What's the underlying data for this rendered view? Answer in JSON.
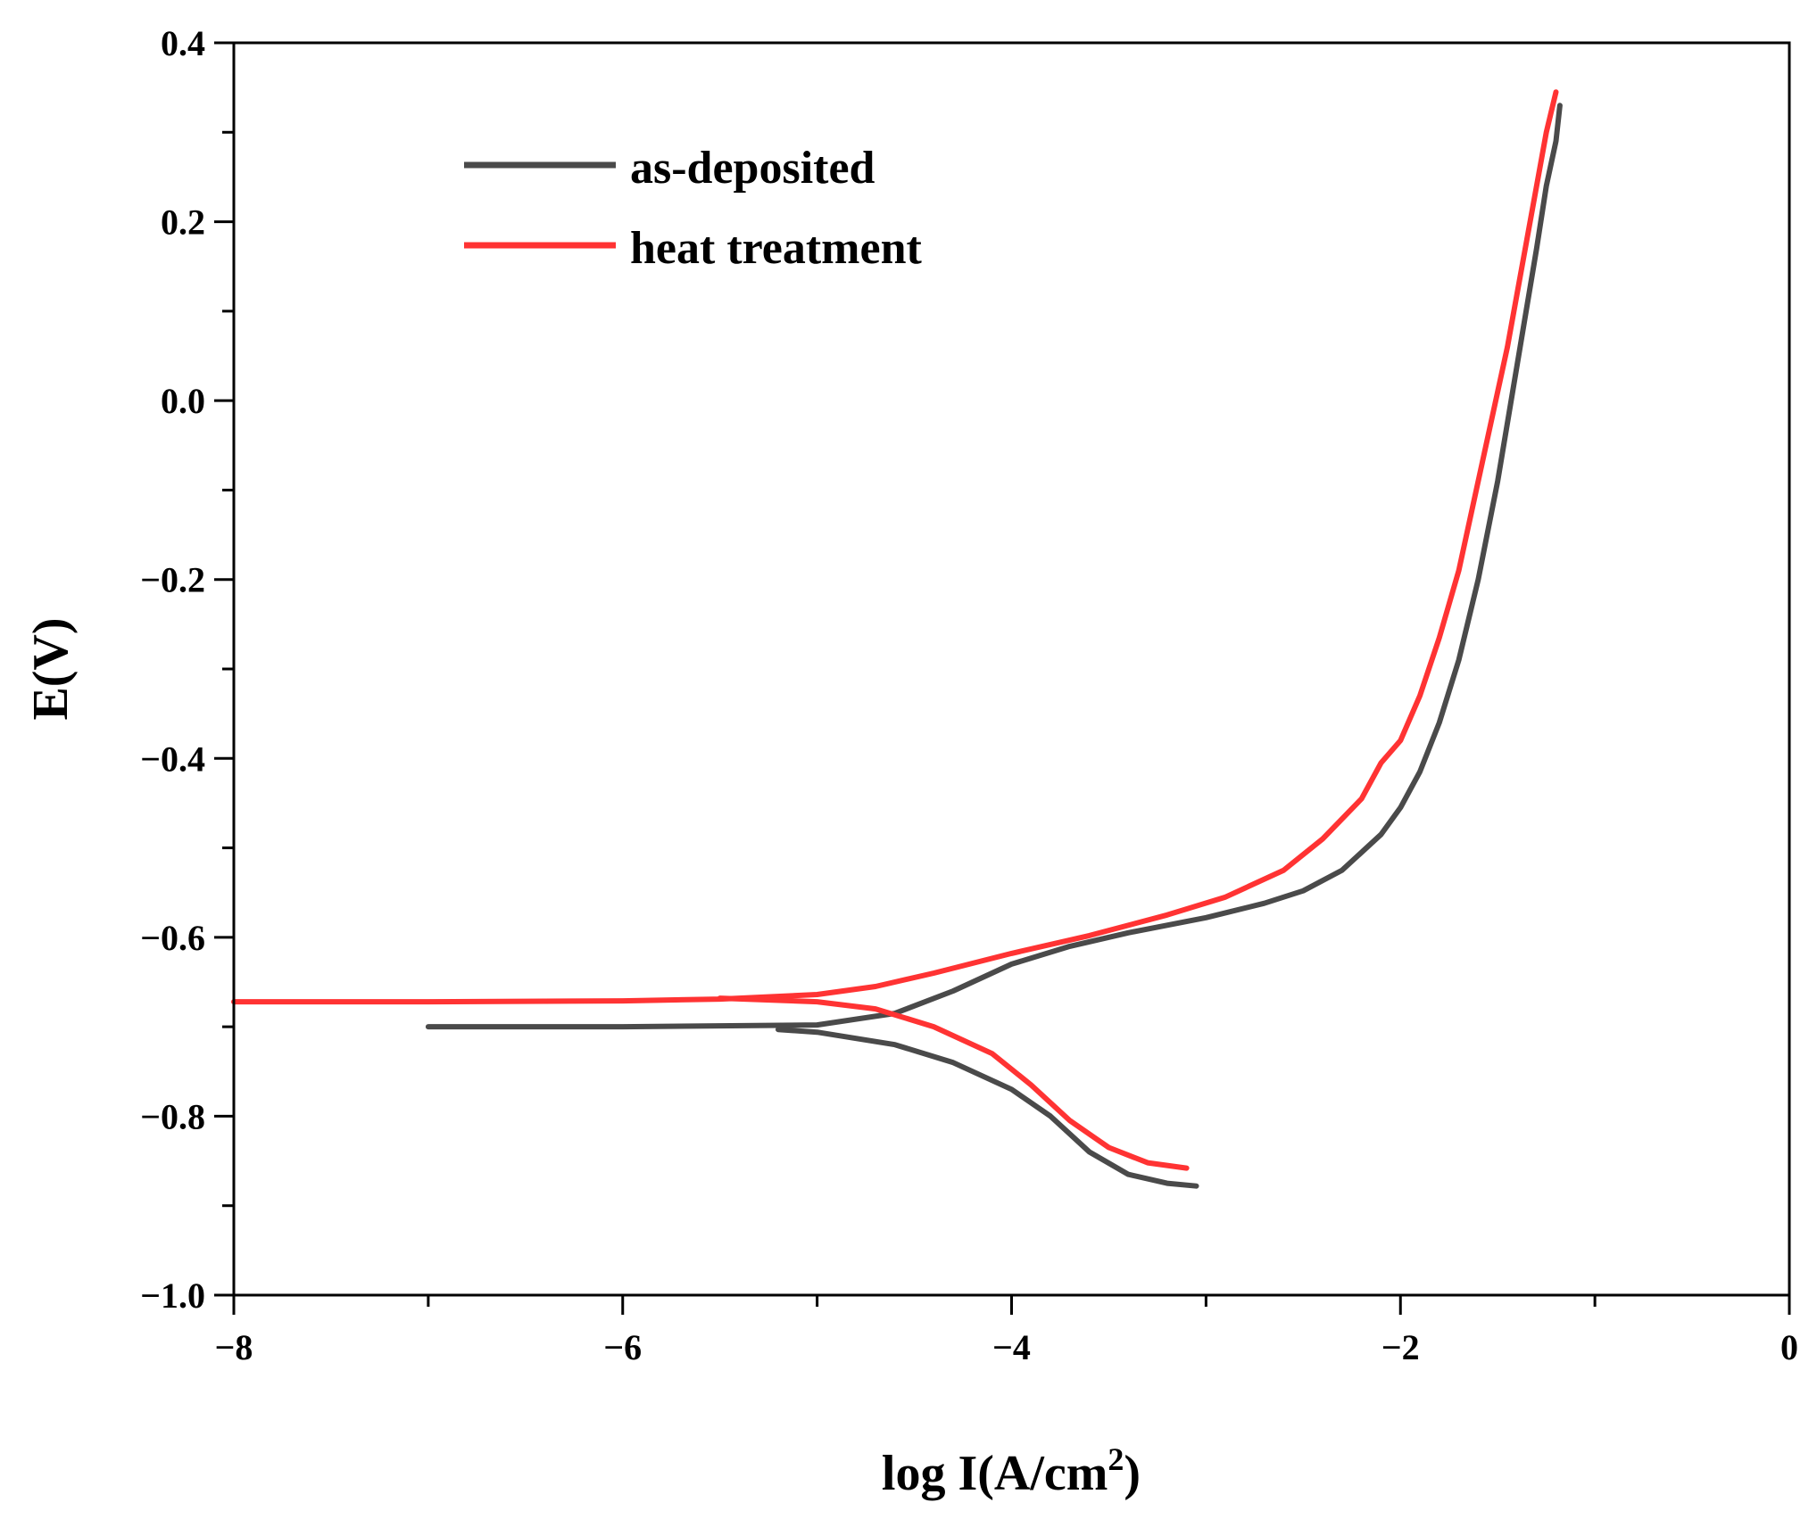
{
  "chart_data": {
    "type": "line",
    "title": "",
    "xlabel": "log I(A/cm",
    "xlabel_sup": "2",
    "xlabel_close": ")",
    "ylabel": "E(V)",
    "xlim": [
      -8,
      0
    ],
    "ylim": [
      -1.0,
      0.4
    ],
    "x_ticks": [
      -8,
      -6,
      -4,
      -2,
      0
    ],
    "x_tick_labels": [
      "−8",
      "−6",
      "−4",
      "−2",
      "0"
    ],
    "y_ticks": [
      0.4,
      0.2,
      0.0,
      -0.2,
      -0.4,
      -0.6,
      -0.8,
      -1.0
    ],
    "y_tick_labels": [
      "0.4",
      "0.2",
      "0.0",
      "−0.2",
      "−0.4",
      "−0.6",
      "−0.8",
      "−1.0"
    ],
    "legend_position": "top-left",
    "series": [
      {
        "name": "as-deposited",
        "color": "#4a4a4a",
        "branches": [
          {
            "part": "anodic",
            "x": [
              -7.0,
              -6.0,
              -5.0,
              -4.6,
              -4.3,
              -4.0,
              -3.7,
              -3.4,
              -3.0,
              -2.7,
              -2.5,
              -2.3,
              -2.1,
              -2.0,
              -1.9,
              -1.8,
              -1.7,
              -1.6,
              -1.5,
              -1.4,
              -1.3,
              -1.25,
              -1.2,
              -1.18
            ],
            "y": [
              -0.7,
              -0.7,
              -0.698,
              -0.685,
              -0.66,
              -0.63,
              -0.61,
              -0.595,
              -0.578,
              -0.562,
              -0.548,
              -0.525,
              -0.485,
              -0.455,
              -0.415,
              -0.36,
              -0.29,
              -0.2,
              -0.09,
              0.04,
              0.17,
              0.24,
              0.29,
              0.33
            ]
          },
          {
            "part": "cathodic",
            "x": [
              -5.2,
              -5.0,
              -4.6,
              -4.3,
              -4.0,
              -3.8,
              -3.6,
              -3.4,
              -3.2,
              -3.05
            ],
            "y": [
              -0.703,
              -0.706,
              -0.72,
              -0.74,
              -0.77,
              -0.8,
              -0.84,
              -0.865,
              -0.875,
              -0.878
            ]
          }
        ]
      },
      {
        "name": "heat treatment",
        "color": "#ff3333",
        "branches": [
          {
            "part": "anodic",
            "x": [
              -8.0,
              -7.0,
              -6.0,
              -5.5,
              -5.0,
              -4.7,
              -4.4,
              -4.0,
              -3.6,
              -3.2,
              -2.9,
              -2.6,
              -2.4,
              -2.2,
              -2.1,
              -2.0,
              -1.9,
              -1.8,
              -1.7,
              -1.6,
              -1.5,
              -1.45,
              -1.4,
              -1.35,
              -1.3,
              -1.25,
              -1.2
            ],
            "y": [
              -0.672,
              -0.672,
              -0.671,
              -0.669,
              -0.664,
              -0.655,
              -0.64,
              -0.618,
              -0.598,
              -0.575,
              -0.555,
              -0.525,
              -0.49,
              -0.445,
              -0.405,
              -0.38,
              -0.33,
              -0.265,
              -0.19,
              -0.09,
              0.01,
              0.06,
              0.12,
              0.18,
              0.24,
              0.3,
              0.345
            ]
          },
          {
            "part": "cathodic",
            "x": [
              -5.5,
              -5.0,
              -4.7,
              -4.4,
              -4.1,
              -3.9,
              -3.7,
              -3.5,
              -3.3,
              -3.1
            ],
            "y": [
              -0.668,
              -0.672,
              -0.68,
              -0.7,
              -0.73,
              -0.765,
              -0.805,
              -0.835,
              -0.852,
              -0.858
            ]
          }
        ]
      }
    ]
  }
}
